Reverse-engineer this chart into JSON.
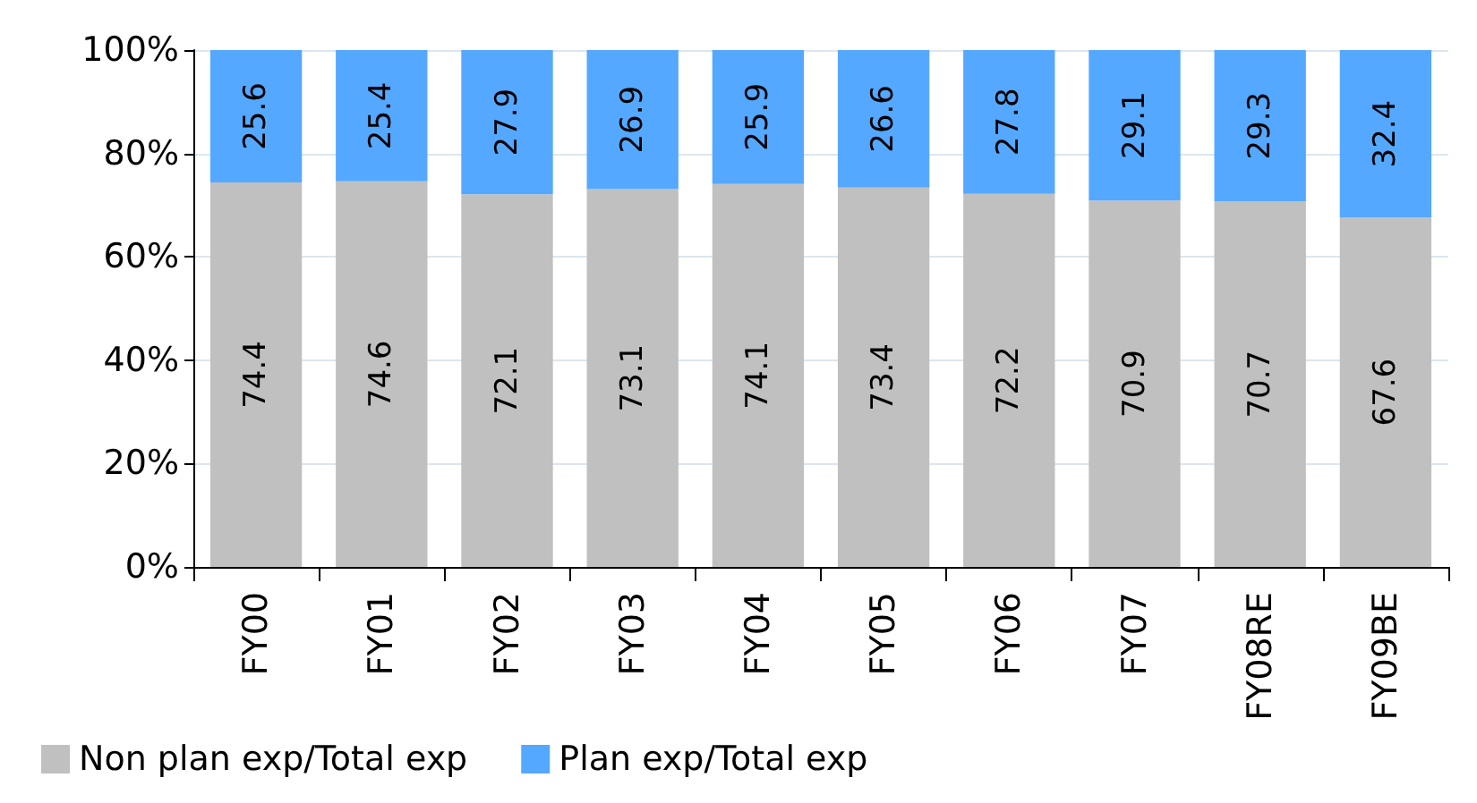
{
  "chart_data": {
    "type": "bar",
    "stacked": true,
    "data_labels": true,
    "grid": "y",
    "legend": "bottom left",
    "categories": [
      "FY00",
      "FY01",
      "FY02",
      "FY03",
      "FY04",
      "FY05",
      "FY06",
      "FY07",
      "FY08RE",
      "FY09BE"
    ],
    "ylim": [
      0,
      100
    ],
    "yticks": [
      {
        "value": 0,
        "label": "0%"
      },
      {
        "value": 20,
        "label": "20%"
      },
      {
        "value": 40,
        "label": "40%"
      },
      {
        "value": 60,
        "label": "60%"
      },
      {
        "value": 80,
        "label": "80%"
      },
      {
        "value": 100,
        "label": "100%"
      }
    ],
    "series": [
      {
        "name": "Non plan exp/Total exp",
        "color": "#c0c0c0",
        "values": [
          74.4,
          74.6,
          72.1,
          73.1,
          74.1,
          73.4,
          72.2,
          70.9,
          70.7,
          67.6
        ]
      },
      {
        "name": "Plan exp/Total exp",
        "color": "#55a8ff",
        "values": [
          25.6,
          25.4,
          27.9,
          26.9,
          25.9,
          26.6,
          27.8,
          29.1,
          29.3,
          32.4
        ]
      }
    ]
  }
}
